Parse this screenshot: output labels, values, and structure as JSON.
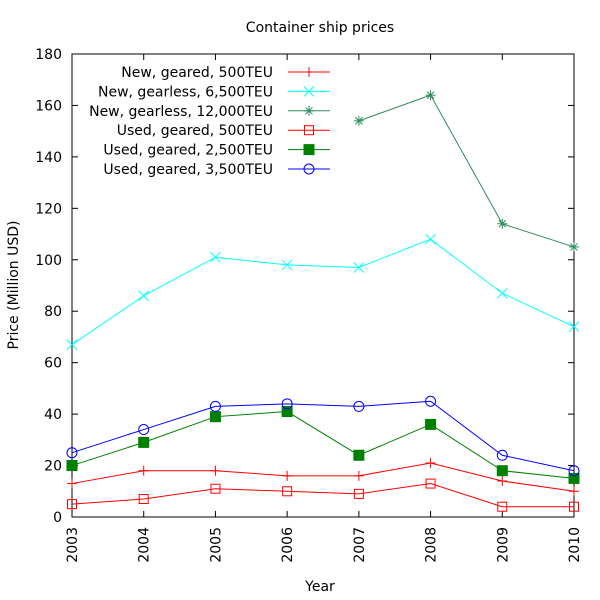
{
  "chart_data": {
    "type": "line",
    "title": "Container ship prices",
    "xlabel": "Year",
    "ylabel": "Price (Million USD)",
    "x": [
      2003,
      2004,
      2005,
      2006,
      2007,
      2008,
      2009,
      2010
    ],
    "xticks": [
      "2003",
      "2004",
      "2005",
      "2006",
      "2007",
      "2008",
      "2009",
      "2010"
    ],
    "yticks": [
      "0",
      "20",
      "40",
      "60",
      "80",
      "100",
      "120",
      "140",
      "160",
      "180"
    ],
    "xlim": [
      2003,
      2010
    ],
    "ylim": [
      0,
      180
    ],
    "grid": false,
    "legend_position": "top-left",
    "series": [
      {
        "name": "New, geared, 500TEU",
        "color": "#ff0000",
        "marker": "plus",
        "values": [
          13,
          18,
          18,
          16,
          16,
          21,
          14,
          10
        ]
      },
      {
        "name": "New, gearless, 6,500TEU",
        "color": "#00ffff",
        "marker": "cross",
        "values": [
          67,
          86,
          101,
          98,
          97,
          108,
          87,
          74
        ]
      },
      {
        "name": "New, gearless, 12,000TEU",
        "color": "#2e8b57",
        "marker": "asterisk",
        "values": [
          null,
          null,
          null,
          null,
          154,
          164,
          114,
          105
        ]
      },
      {
        "name": "Used, geared, 500TEU",
        "color": "#ff0000",
        "marker": "square-open",
        "values": [
          5,
          7,
          11,
          10,
          9,
          13,
          4,
          4
        ]
      },
      {
        "name": "Used, geared, 2,500TEU",
        "color": "#008000",
        "marker": "square-filled",
        "values": [
          20,
          29,
          39,
          41,
          24,
          36,
          18,
          15
        ]
      },
      {
        "name": "Used, geared, 3,500TEU",
        "color": "#0000ff",
        "marker": "circle-open",
        "values": [
          25,
          34,
          43,
          44,
          43,
          45,
          24,
          18
        ]
      }
    ]
  }
}
